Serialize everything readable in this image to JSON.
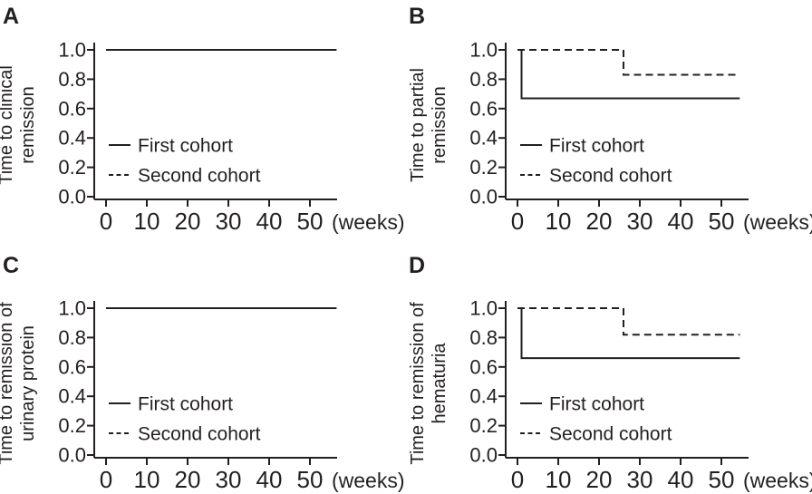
{
  "figure": {
    "ink_color": "#231f20",
    "background": "#ffffff"
  },
  "legend": {
    "items": [
      {
        "label": "First cohort",
        "line": "solid"
      },
      {
        "label": "Second cohort",
        "line": "dashed"
      }
    ]
  },
  "chart_data": [
    {
      "id": "A",
      "type": "line",
      "letter": "A",
      "ylabel": "Time to clinical remission",
      "ylabel_lines": [
        "Time to clinical",
        "remission"
      ],
      "xlabel": "(weeks)",
      "xlim": [
        0,
        56
      ],
      "ylim": [
        0.0,
        1.0
      ],
      "x_ticks": [
        0,
        10,
        20,
        30,
        40,
        50
      ],
      "y_ticks": [
        "0.0",
        "0.2",
        "0.4",
        "0.6",
        "0.8",
        "1.0"
      ],
      "legend_position": "inside-left-lower",
      "grid": false,
      "series": [
        {
          "name": "First cohort",
          "line": "solid",
          "points": [
            [
              0,
              1.0
            ],
            [
              56.5,
              1.0
            ]
          ]
        },
        {
          "name": "Second cohort",
          "line": "dashed",
          "points": [
            [
              0,
              1.0
            ],
            [
              56.5,
              1.0
            ]
          ]
        }
      ]
    },
    {
      "id": "B",
      "type": "line",
      "letter": "B",
      "ylabel": "Time to partial remission",
      "ylabel_lines": [
        "Time to partial",
        "remission"
      ],
      "xlabel": "(weeks)",
      "xlim": [
        0,
        56
      ],
      "ylim": [
        0.0,
        1.0
      ],
      "x_ticks": [
        0,
        10,
        20,
        30,
        40,
        50
      ],
      "y_ticks": [
        "0.0",
        "0.2",
        "0.4",
        "0.6",
        "0.8",
        "1.0"
      ],
      "legend_position": "inside-left-lower",
      "grid": false,
      "series": [
        {
          "name": "First cohort",
          "line": "solid",
          "points": [
            [
              0,
              1.0
            ],
            [
              1,
              1.0
            ],
            [
              1,
              0.67
            ],
            [
              54.5,
              0.67
            ]
          ]
        },
        {
          "name": "Second cohort",
          "line": "dashed",
          "points": [
            [
              0,
              1.0
            ],
            [
              26,
              1.0
            ],
            [
              26,
              0.83
            ],
            [
              54.5,
              0.83
            ]
          ]
        }
      ]
    },
    {
      "id": "C",
      "type": "line",
      "letter": "C",
      "ylabel": "Time to remission of urinary protein",
      "ylabel_lines": [
        "Time to remission of",
        "urinary protein"
      ],
      "xlabel": "(weeks)",
      "xlim": [
        0,
        56
      ],
      "ylim": [
        0.0,
        1.0
      ],
      "x_ticks": [
        0,
        10,
        20,
        30,
        40,
        50
      ],
      "y_ticks": [
        "0.0",
        "0.2",
        "0.4",
        "0.6",
        "0.8",
        "1.0"
      ],
      "legend_position": "inside-left-lower",
      "grid": false,
      "series": [
        {
          "name": "First cohort",
          "line": "solid",
          "points": [
            [
              0,
              1.0
            ],
            [
              56.5,
              1.0
            ]
          ]
        },
        {
          "name": "Second cohort",
          "line": "dashed",
          "points": [
            [
              0,
              1.0
            ],
            [
              56.5,
              1.0
            ]
          ]
        }
      ]
    },
    {
      "id": "D",
      "type": "line",
      "letter": "D",
      "ylabel": "Time to remission of hematuria",
      "ylabel_lines": [
        "Time to remission of",
        "hematuria"
      ],
      "xlabel": "(weeks)",
      "xlim": [
        0,
        56
      ],
      "ylim": [
        0.0,
        1.0
      ],
      "x_ticks": [
        0,
        10,
        20,
        30,
        40,
        50
      ],
      "y_ticks": [
        "0.0",
        "0.2",
        "0.4",
        "0.6",
        "0.8",
        "1.0"
      ],
      "legend_position": "inside-left-lower",
      "grid": false,
      "series": [
        {
          "name": "First cohort",
          "line": "solid",
          "points": [
            [
              0,
              1.0
            ],
            [
              1,
              1.0
            ],
            [
              1,
              0.66
            ],
            [
              54.5,
              0.66
            ]
          ]
        },
        {
          "name": "Second cohort",
          "line": "dashed",
          "points": [
            [
              0,
              1.0
            ],
            [
              26,
              1.0
            ],
            [
              26,
              0.82
            ],
            [
              54.5,
              0.82
            ]
          ]
        }
      ]
    }
  ]
}
